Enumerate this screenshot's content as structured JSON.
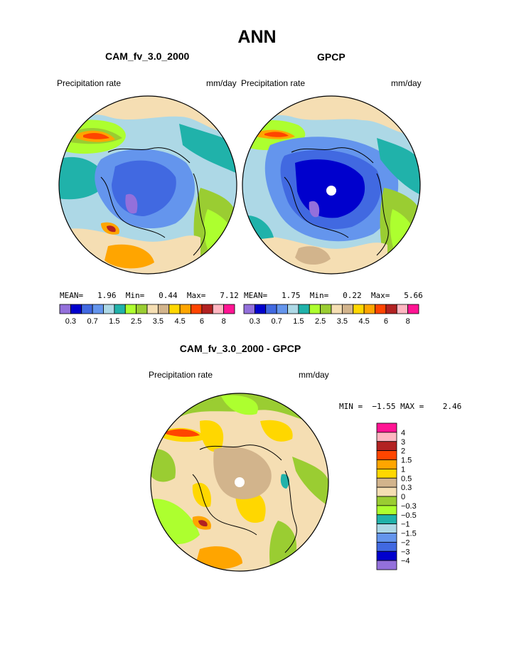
{
  "page_title": "ANN",
  "panels": [
    {
      "title": "CAM_fv_3.0_2000",
      "left_label": "Precipitation rate",
      "right_label": "mm/day",
      "stats": {
        "mean_label": "MEAN=",
        "mean": "1.96",
        "min_label": "Min=",
        "min": "0.44",
        "max_label": "Max=",
        "max": "7.12"
      }
    },
    {
      "title": "GPCP",
      "left_label": "Precipitation rate",
      "right_label": "mm/day",
      "stats": {
        "mean_label": "MEAN=",
        "mean": "1.75",
        "min_label": "Min=",
        "min": "0.22",
        "max_label": "Max=",
        "max": "5.66"
      }
    }
  ],
  "abs_colorbar": {
    "colors": [
      "#9370db",
      "#0000cd",
      "#4169e1",
      "#6495ed",
      "#add8e6",
      "#20b2aa",
      "#adff2f",
      "#9acd32",
      "#f5deb3",
      "#d2b48c",
      "#ffd700",
      "#ffa500",
      "#ff4500",
      "#b22222",
      "#ffb6c1",
      "#ff1493"
    ],
    "tick_labels": [
      "0.3",
      "0.7",
      "1.5",
      "2.5",
      "3.5",
      "4.5",
      "6",
      "8"
    ]
  },
  "diff_panel": {
    "title": "CAM_fv_3.0_2000 - GPCP",
    "left_label": "Precipitation rate",
    "right_label": "mm/day",
    "stats_text": "MIN =  −1.55 MAX =    2.46"
  },
  "diff_colorbar": {
    "colors": [
      "#ff1493",
      "#ffb6c1",
      "#b22222",
      "#ff4500",
      "#ffa500",
      "#ffd700",
      "#d2b48c",
      "#f5deb3",
      "#9acd32",
      "#adff2f",
      "#20b2aa",
      "#add8e6",
      "#6495ed",
      "#4169e1",
      "#0000cd",
      "#9370db"
    ],
    "tick_labels": [
      "4",
      "3",
      "2",
      "1.5",
      "1",
      "0.5",
      "0.3",
      "0",
      "−0.3",
      "−0.5",
      "−1",
      "−1.5",
      "−2",
      "−3",
      "−4"
    ]
  },
  "colors": {
    "ocean_light": "#add8e6",
    "teal": "#20b2aa",
    "tan": "#f5deb3",
    "light_green": "#adff2f",
    "olive_green": "#9acd32",
    "blue_mid": "#6495ed",
    "blue_royal": "#4169e1",
    "blue_dark": "#0000cd",
    "purple": "#9370db",
    "gold": "#ffd700",
    "orange": "#ffa500",
    "red_orange": "#ff4500",
    "brick": "#b22222",
    "brown_tan": "#d2b48c"
  }
}
